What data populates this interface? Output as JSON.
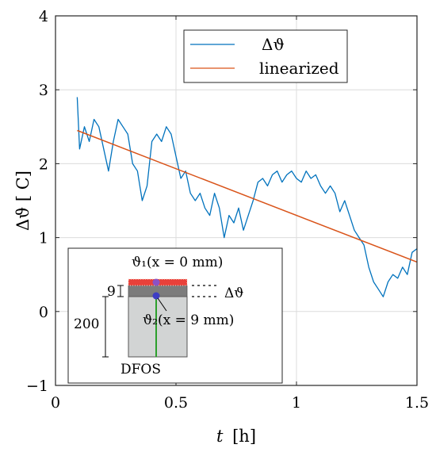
{
  "chart_data": {
    "type": "line",
    "xlabel_var": "t",
    "xlabel_unit": "[h]",
    "ylabel": "Δϑ [ C]",
    "xlim": [
      0,
      1.5
    ],
    "ylim": [
      -1,
      4
    ],
    "xticks": [
      0,
      0.5,
      1,
      1.5
    ],
    "xtick_labels": [
      "0",
      "0.5",
      "1",
      "1.5"
    ],
    "yticks": [
      -1,
      0,
      1,
      2,
      3,
      4
    ],
    "ytick_labels": [
      "−1",
      "0",
      "1",
      "2",
      "3",
      "4"
    ],
    "grid": true,
    "legend_position": "top-right",
    "series": [
      {
        "name": "Δϑ",
        "color": "#0072bd",
        "x": [
          0.09,
          0.1,
          0.12,
          0.14,
          0.16,
          0.18,
          0.2,
          0.22,
          0.24,
          0.26,
          0.28,
          0.3,
          0.32,
          0.34,
          0.36,
          0.38,
          0.4,
          0.42,
          0.44,
          0.46,
          0.48,
          0.5,
          0.52,
          0.54,
          0.56,
          0.58,
          0.6,
          0.62,
          0.64,
          0.66,
          0.68,
          0.7,
          0.72,
          0.74,
          0.76,
          0.78,
          0.8,
          0.82,
          0.84,
          0.86,
          0.88,
          0.9,
          0.92,
          0.94,
          0.96,
          0.98,
          1.0,
          1.02,
          1.04,
          1.06,
          1.08,
          1.1,
          1.12,
          1.14,
          1.16,
          1.18,
          1.2,
          1.22,
          1.24,
          1.26,
          1.28,
          1.3,
          1.32,
          1.34,
          1.36,
          1.38,
          1.4,
          1.42,
          1.44,
          1.46,
          1.48,
          1.5
        ],
        "y": [
          2.9,
          2.2,
          2.5,
          2.3,
          2.6,
          2.5,
          2.2,
          1.9,
          2.3,
          2.6,
          2.5,
          2.4,
          2.0,
          1.9,
          1.5,
          1.7,
          2.3,
          2.4,
          2.3,
          2.5,
          2.4,
          2.1,
          1.8,
          1.9,
          1.6,
          1.5,
          1.6,
          1.4,
          1.3,
          1.6,
          1.4,
          1.0,
          1.3,
          1.2,
          1.4,
          1.1,
          1.3,
          1.5,
          1.75,
          1.8,
          1.7,
          1.85,
          1.9,
          1.75,
          1.85,
          1.9,
          1.8,
          1.75,
          1.9,
          1.8,
          1.85,
          1.7,
          1.6,
          1.7,
          1.6,
          1.35,
          1.5,
          1.3,
          1.1,
          1.0,
          0.9,
          0.6,
          0.4,
          0.3,
          0.2,
          0.4,
          0.5,
          0.45,
          0.6,
          0.5,
          0.8,
          0.85
        ]
      },
      {
        "name": "linearized",
        "color": "#d95319",
        "x": [
          0.09,
          1.5
        ],
        "y": [
          2.45,
          0.67
        ]
      }
    ]
  },
  "inset": {
    "label_top": "ϑ₁(x = 0 mm)",
    "label_bottom": "ϑ₂(x = 9 mm)",
    "label_delta": "Δϑ",
    "label_9": "9",
    "label_200": "200",
    "label_dfos": "DFOS"
  }
}
